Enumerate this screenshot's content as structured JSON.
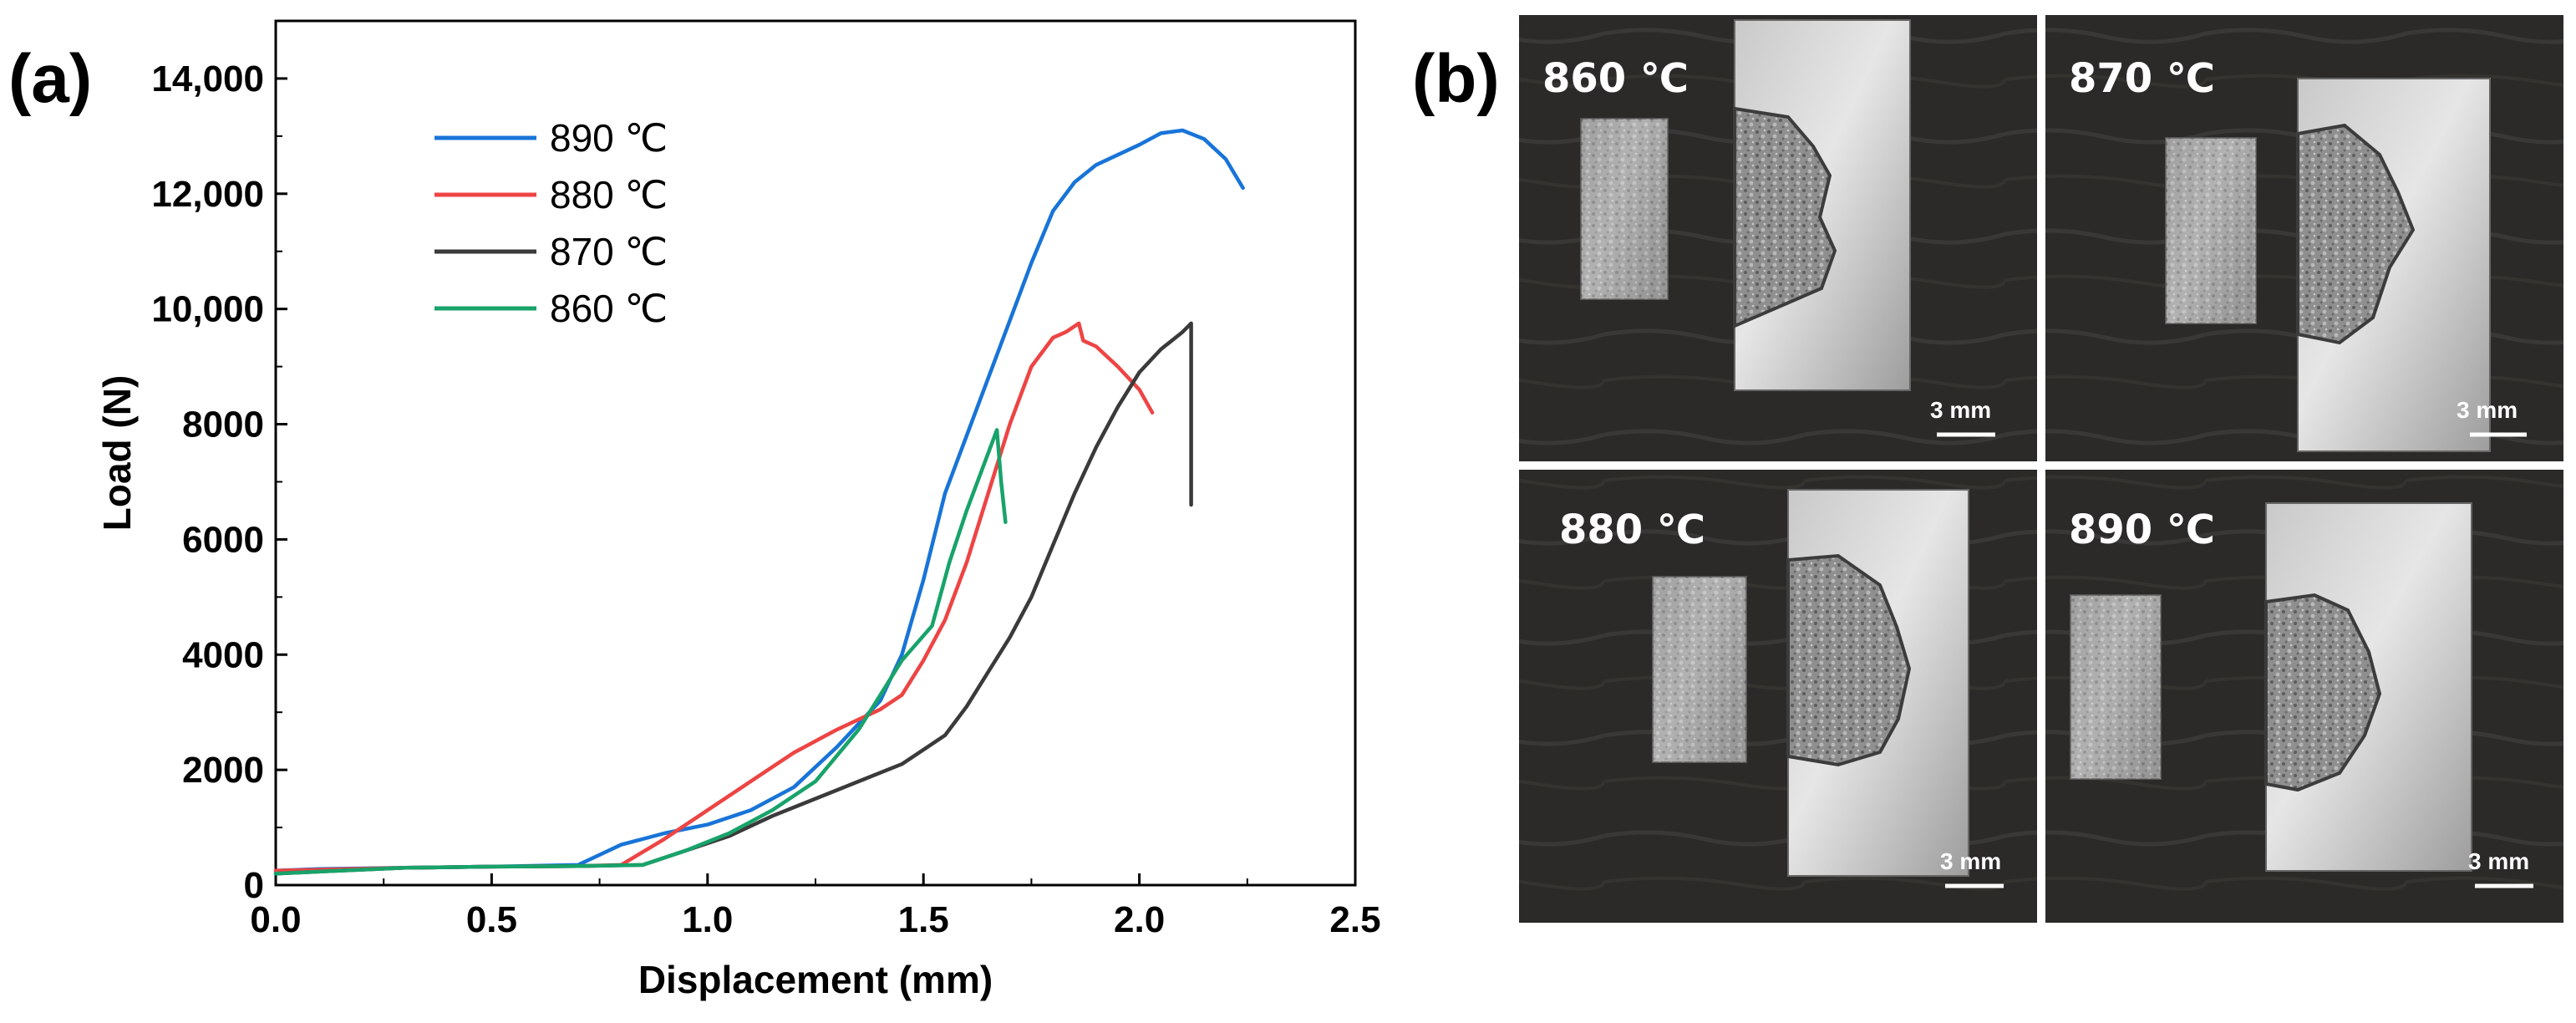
{
  "panel_a_label": "(a)",
  "panel_b_label": "(b)",
  "colors": {
    "890": "#1874d8",
    "880": "#ee4444",
    "870": "#3a3a3a",
    "860": "#18a36a"
  },
  "chart_data": {
    "type": "line",
    "title": "",
    "xlabel": "Displacement (mm)",
    "ylabel": "Load (N)",
    "xlim": [
      0,
      2.5
    ],
    "ylim": [
      0,
      15000
    ],
    "xticks": [
      0.0,
      0.5,
      1.0,
      1.5,
      2.0,
      2.5
    ],
    "xtick_labels": [
      "0.0",
      "0.5",
      "1.0",
      "1.5",
      "2.0",
      "2.5"
    ],
    "yticks": [
      0,
      2000,
      4000,
      6000,
      8000,
      10000,
      12000,
      14000
    ],
    "ytick_labels": [
      "0",
      "2000",
      "4000",
      "6000",
      "8000",
      "10,000",
      "12,000",
      "14,000"
    ],
    "legend_position": "top-left",
    "series": [
      {
        "name": "890 ℃",
        "color": "#1874d8",
        "x": [
          0,
          0.1,
          0.3,
          0.5,
          0.7,
          0.8,
          0.9,
          1.0,
          1.1,
          1.2,
          1.3,
          1.4,
          1.45,
          1.5,
          1.55,
          1.6,
          1.65,
          1.7,
          1.75,
          1.8,
          1.85,
          1.9,
          2.0,
          2.05,
          2.1,
          2.15,
          2.2,
          2.24
        ],
        "y": [
          250,
          280,
          300,
          320,
          350,
          700,
          900,
          1050,
          1300,
          1700,
          2400,
          3200,
          4000,
          5300,
          6800,
          7800,
          8800,
          9800,
          10800,
          11700,
          12200,
          12500,
          12850,
          13050,
          13100,
          12950,
          12600,
          12100
        ]
      },
      {
        "name": "880 ℃",
        "color": "#ee4444",
        "x": [
          0,
          0.3,
          0.5,
          0.7,
          0.8,
          0.9,
          1.0,
          1.1,
          1.2,
          1.3,
          1.4,
          1.45,
          1.5,
          1.55,
          1.6,
          1.65,
          1.7,
          1.75,
          1.8,
          1.83,
          1.86,
          1.87,
          1.9,
          1.95,
          2.0,
          2.03
        ],
        "y": [
          250,
          300,
          320,
          330,
          350,
          800,
          1300,
          1800,
          2300,
          2700,
          3050,
          3300,
          3900,
          4600,
          5600,
          6800,
          8000,
          9000,
          9500,
          9600,
          9750,
          9450,
          9350,
          9000,
          8600,
          8200
        ]
      },
      {
        "name": "870 ℃",
        "color": "#3a3a3a",
        "x": [
          0,
          0.3,
          0.5,
          0.7,
          0.85,
          0.95,
          1.05,
          1.15,
          1.25,
          1.35,
          1.45,
          1.55,
          1.6,
          1.65,
          1.7,
          1.75,
          1.8,
          1.85,
          1.9,
          1.95,
          2.0,
          2.05,
          2.1,
          2.12,
          2.12
        ],
        "y": [
          200,
          300,
          320,
          330,
          350,
          600,
          850,
          1200,
          1500,
          1800,
          2100,
          2600,
          3100,
          3700,
          4300,
          5000,
          5900,
          6800,
          7600,
          8300,
          8900,
          9300,
          9600,
          9750,
          6600
        ]
      },
      {
        "name": "860 ℃",
        "color": "#18a36a",
        "x": [
          0,
          0.3,
          0.5,
          0.7,
          0.85,
          0.95,
          1.05,
          1.15,
          1.25,
          1.35,
          1.45,
          1.52,
          1.56,
          1.6,
          1.64,
          1.67,
          1.68,
          1.69
        ],
        "y": [
          200,
          300,
          320,
          330,
          350,
          600,
          900,
          1300,
          1800,
          2700,
          3900,
          4500,
          5600,
          6500,
          7300,
          7900,
          7000,
          6300
        ]
      }
    ]
  },
  "photos": {
    "p860": {
      "title": "860 ℃",
      "scale": "3 mm"
    },
    "p870": {
      "title": "870 ℃",
      "scale": "3 mm"
    },
    "p880": {
      "title": "880 ℃",
      "scale": "3 mm"
    },
    "p890": {
      "title": "890 ℃",
      "scale": "3 mm"
    }
  }
}
